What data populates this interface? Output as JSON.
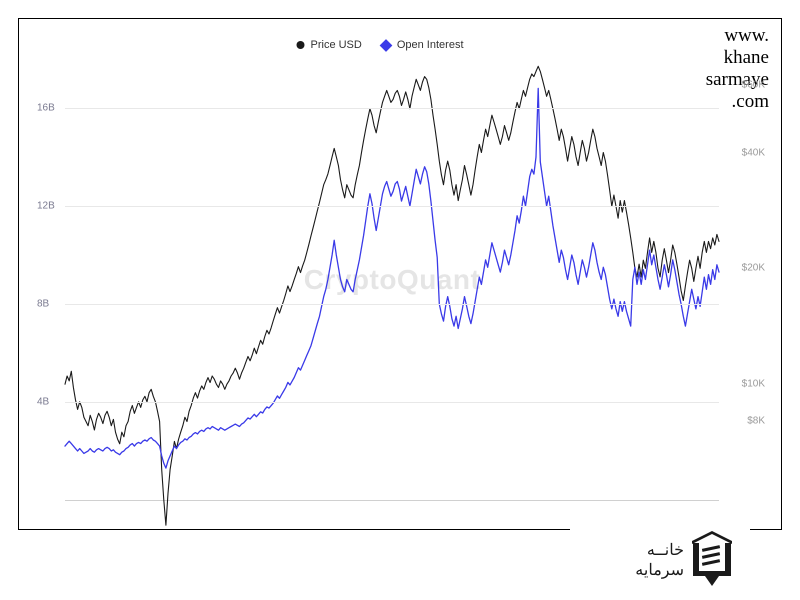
{
  "url_lines": [
    "www.",
    "khane",
    "sarmaye",
    ".com"
  ],
  "watermark": "CryptoQuant",
  "legend": {
    "price": {
      "label": "Price USD",
      "marker_color": "#1a1a1a"
    },
    "oi": {
      "label": "Open Interest",
      "marker_color": "#3a3ae8"
    }
  },
  "chart": {
    "background": "#ffffff",
    "grid_color": "#e8e8e8",
    "border_color": "#d0d0d0",
    "y_left": {
      "min": 0,
      "max": 18,
      "ticks": [
        4,
        8,
        12,
        16
      ],
      "tick_labels": [
        "4B",
        "8B",
        "12B",
        "16B"
      ],
      "label_color": "#7a7a90",
      "fontsize": 10
    },
    "y_right": {
      "min": 5,
      "max": 70,
      "ticks": [
        8,
        10,
        20,
        40,
        60
      ],
      "tick_labels": [
        "$8K",
        "$10K",
        "$20K",
        "$40K",
        "$60K"
      ],
      "scale": "log",
      "label_color": "#9a9a9a",
      "fontsize": 10
    },
    "series": {
      "price": {
        "color": "#1a1a1a",
        "stroke_width": 1.1,
        "axis": "right",
        "data": [
          10.0,
          10.5,
          10.2,
          10.8,
          9.8,
          9.1,
          8.6,
          9.0,
          8.7,
          8.2,
          8.0,
          7.8,
          8.3,
          8.0,
          7.6,
          8.1,
          8.4,
          8.2,
          7.9,
          8.3,
          8.5,
          8.2,
          7.8,
          8.1,
          7.5,
          7.2,
          7.0,
          7.5,
          7.3,
          7.8,
          8.0,
          8.5,
          8.8,
          8.4,
          8.7,
          9.0,
          8.7,
          9.1,
          9.3,
          9.0,
          9.5,
          9.7,
          9.3,
          9.0,
          8.5,
          8.0,
          6.0,
          5.0,
          4.3,
          5.2,
          6.0,
          6.5,
          7.1,
          6.8,
          7.2,
          7.5,
          7.8,
          8.2,
          8.0,
          8.5,
          8.8,
          9.2,
          9.5,
          9.2,
          9.6,
          9.9,
          9.7,
          10.1,
          10.4,
          10.1,
          10.5,
          10.3,
          10.0,
          9.8,
          10.2,
          10.0,
          9.7,
          10.0,
          10.2,
          10.5,
          10.7,
          11.0,
          10.7,
          10.3,
          10.7,
          11.0,
          11.4,
          11.8,
          11.5,
          11.9,
          12.4,
          12.0,
          12.5,
          13.0,
          12.7,
          13.3,
          13.8,
          13.5,
          14.0,
          14.6,
          15.2,
          15.8,
          15.3,
          15.9,
          16.5,
          17.2,
          18.0,
          17.4,
          18.0,
          18.7,
          19.4,
          20.2,
          19.5,
          20.3,
          21.0,
          22.0,
          23.1,
          24.3,
          25.5,
          26.8,
          28.2,
          29.7,
          31.3,
          33.0,
          34.0,
          35.2,
          37.0,
          39.0,
          41.0,
          39.0,
          37.0,
          34.0,
          32.0,
          30.5,
          33.0,
          32.0,
          31.0,
          30.5,
          33.0,
          35.0,
          37.0,
          40.0,
          43.0,
          46.0,
          49.0,
          52.0,
          50.0,
          47.0,
          45.0,
          48.0,
          51.0,
          54.0,
          56.0,
          58.0,
          56.0,
          54.0,
          55.0,
          57.0,
          58.0,
          56.0,
          53.0,
          55.0,
          57.5,
          55.0,
          52.0,
          56.0,
          59.0,
          62.0,
          60.0,
          58.0,
          61.0,
          63.0,
          62.0,
          59.0,
          55.0,
          50.0,
          46.0,
          42.0,
          38.0,
          35.0,
          33.0,
          36.0,
          38.0,
          36.0,
          33.0,
          31.0,
          33.0,
          30.0,
          32.0,
          34.0,
          37.0,
          35.0,
          33.0,
          31.0,
          33.0,
          36.0,
          39.0,
          42.0,
          40.0,
          43.0,
          46.0,
          44.0,
          47.0,
          50.0,
          48.0,
          46.0,
          44.0,
          42.0,
          44.0,
          47.0,
          45.0,
          43.0,
          45.0,
          48.0,
          51.0,
          54.0,
          52.0,
          55.0,
          58.0,
          56.0,
          59.0,
          62.0,
          64.0,
          63.0,
          65.0,
          67.0,
          65.0,
          62.0,
          59.0,
          56.0,
          58.0,
          55.0,
          52.0,
          49.0,
          46.0,
          43.0,
          46.0,
          44.0,
          41.0,
          38.0,
          41.0,
          44.0,
          42.0,
          39.0,
          37.0,
          40.0,
          43.0,
          41.0,
          38.0,
          40.0,
          43.0,
          46.0,
          44.0,
          41.0,
          39.0,
          37.0,
          40.0,
          38.0,
          35.0,
          32.0,
          29.0,
          31.0,
          29.0,
          27.0,
          30.0,
          28.0,
          30.0,
          28.0,
          26.0,
          24.0,
          22.0,
          20.0,
          19.0,
          20.5,
          19.0,
          21.0,
          20.0,
          22.0,
          24.0,
          22.0,
          23.5,
          22.0,
          20.0,
          19.0,
          21.0,
          22.5,
          21.0,
          19.5,
          21.0,
          23.0,
          22.0,
          20.5,
          19.0,
          17.5,
          16.5,
          18.0,
          19.5,
          21.0,
          20.0,
          18.5,
          20.0,
          21.5,
          20.0,
          22.0,
          23.5,
          22.0,
          23.5,
          22.5,
          24.0,
          23.0,
          24.5,
          23.5
        ]
      },
      "open_interest": {
        "color": "#3a3ae8",
        "stroke_width": 1.3,
        "axis": "left",
        "data": [
          2.2,
          2.3,
          2.4,
          2.3,
          2.2,
          2.1,
          2.0,
          2.1,
          2.0,
          1.9,
          1.95,
          2.0,
          2.1,
          2.0,
          1.95,
          2.05,
          2.1,
          2.05,
          2.0,
          2.1,
          2.15,
          2.1,
          2.0,
          2.05,
          1.95,
          1.9,
          1.85,
          1.95,
          2.0,
          2.1,
          2.15,
          2.25,
          2.3,
          2.2,
          2.3,
          2.35,
          2.3,
          2.4,
          2.45,
          2.4,
          2.5,
          2.55,
          2.45,
          2.4,
          2.3,
          2.2,
          1.8,
          1.5,
          1.3,
          1.6,
          1.8,
          2.0,
          2.2,
          2.1,
          2.25,
          2.35,
          2.4,
          2.5,
          2.45,
          2.55,
          2.6,
          2.7,
          2.75,
          2.7,
          2.8,
          2.85,
          2.8,
          2.9,
          2.95,
          2.9,
          3.0,
          2.95,
          2.9,
          2.85,
          2.95,
          2.9,
          2.85,
          2.9,
          2.95,
          3.0,
          3.05,
          3.1,
          3.05,
          3.0,
          3.1,
          3.15,
          3.25,
          3.35,
          3.3,
          3.4,
          3.5,
          3.4,
          3.5,
          3.6,
          3.55,
          3.7,
          3.8,
          3.75,
          3.85,
          3.95,
          4.1,
          4.25,
          4.15,
          4.3,
          4.45,
          4.6,
          4.8,
          4.7,
          4.85,
          5.0,
          5.2,
          5.4,
          5.3,
          5.5,
          5.7,
          5.9,
          6.1,
          6.3,
          6.6,
          6.9,
          7.2,
          7.5,
          7.9,
          8.3,
          8.6,
          9.0,
          9.5,
          10.0,
          10.6,
          10.0,
          9.5,
          9.0,
          8.7,
          8.5,
          9.0,
          8.8,
          8.6,
          8.5,
          9.0,
          9.4,
          9.8,
          10.3,
          10.8,
          11.4,
          12.0,
          12.5,
          12.1,
          11.5,
          11.0,
          11.5,
          12.0,
          12.5,
          12.8,
          13.0,
          12.7,
          12.4,
          12.6,
          12.9,
          13.0,
          12.7,
          12.2,
          12.5,
          12.8,
          12.4,
          12.0,
          12.5,
          13.0,
          13.5,
          13.2,
          12.9,
          13.3,
          13.6,
          13.4,
          12.9,
          12.2,
          11.4,
          10.6,
          9.9,
          8.0,
          7.6,
          7.3,
          7.9,
          8.3,
          7.9,
          7.4,
          7.1,
          7.5,
          7.0,
          7.4,
          7.8,
          8.3,
          7.9,
          7.5,
          7.2,
          7.6,
          8.1,
          8.6,
          9.1,
          8.8,
          9.3,
          9.8,
          9.5,
          10.0,
          10.5,
          10.2,
          9.9,
          9.6,
          9.3,
          9.7,
          10.2,
          9.9,
          9.6,
          10.0,
          10.5,
          11.0,
          11.6,
          11.3,
          11.8,
          12.4,
          12.0,
          12.6,
          13.2,
          13.5,
          13.3,
          14.0,
          16.8,
          13.8,
          13.2,
          12.6,
          12.0,
          12.4,
          11.8,
          11.2,
          10.7,
          10.2,
          9.7,
          10.2,
          9.9,
          9.4,
          9.0,
          9.5,
          10.0,
          9.7,
          9.2,
          8.8,
          9.3,
          9.8,
          9.5,
          9.1,
          9.5,
          10.0,
          10.5,
          10.2,
          9.7,
          9.3,
          9.0,
          9.5,
          9.2,
          8.7,
          8.2,
          7.8,
          8.2,
          7.8,
          7.5,
          8.1,
          7.7,
          8.1,
          7.7,
          7.4,
          7.1,
          9.0,
          9.5,
          8.8,
          9.3,
          8.8,
          9.4,
          9.0,
          9.6,
          10.2,
          9.6,
          10.0,
          9.5,
          9.0,
          8.6,
          9.1,
          9.6,
          9.2,
          8.7,
          9.2,
          9.8,
          9.4,
          8.9,
          8.4,
          8.0,
          7.5,
          7.1,
          7.6,
          8.1,
          8.6,
          8.2,
          7.8,
          8.3,
          7.9,
          8.5,
          9.1,
          8.6,
          9.2,
          8.8,
          9.4,
          9.0,
          9.6,
          9.3
        ]
      }
    }
  },
  "bottom_logo_text_lines": [
    "خانــه",
    "سرمایه"
  ]
}
